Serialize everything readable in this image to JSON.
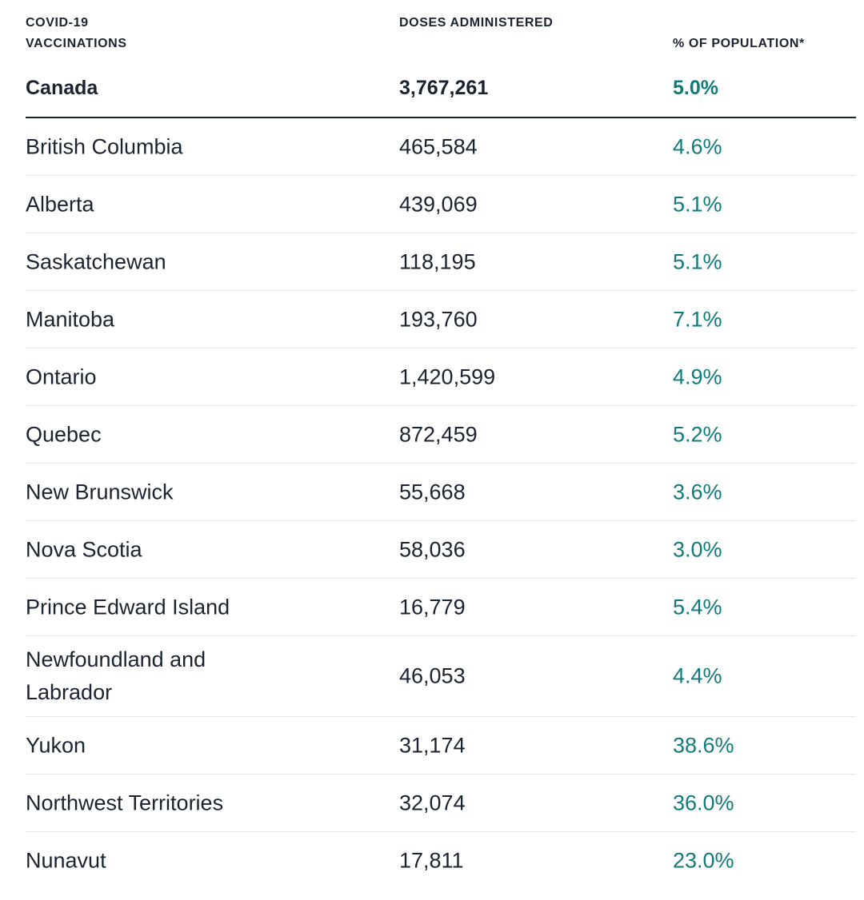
{
  "header": {
    "col1": "COVID-19 VACCINATIONS",
    "col2": "DOSES ADMINISTERED",
    "col3": "% OF POPULATION*"
  },
  "total": {
    "region": "Canada",
    "doses": "3,767,261",
    "percent": "5.0%"
  },
  "rows": [
    {
      "region": "British Columbia",
      "doses": "465,584",
      "percent": "4.6%"
    },
    {
      "region": "Alberta",
      "doses": "439,069",
      "percent": "5.1%"
    },
    {
      "region": "Saskatchewan",
      "doses": "118,195",
      "percent": "5.1%"
    },
    {
      "region": "Manitoba",
      "doses": "193,760",
      "percent": "7.1%"
    },
    {
      "region": "Ontario",
      "doses": "1,420,599",
      "percent": "4.9%"
    },
    {
      "region": "Quebec",
      "doses": "872,459",
      "percent": "5.2%"
    },
    {
      "region": "New Brunswick",
      "doses": "55,668",
      "percent": "3.6%"
    },
    {
      "region": "Nova Scotia",
      "doses": "58,036",
      "percent": "3.0%"
    },
    {
      "region": "Prince Edward Island",
      "doses": "16,779",
      "percent": "5.4%"
    },
    {
      "region": "Newfoundland and Labrador",
      "doses": "46,053",
      "percent": "4.4%"
    },
    {
      "region": "Yukon",
      "doses": "31,174",
      "percent": "38.6%"
    },
    {
      "region": "Northwest Territories",
      "doses": "32,074",
      "percent": "36.0%"
    },
    {
      "region": "Nunavut",
      "doses": "17,811",
      "percent": "23.0%"
    }
  ],
  "colors": {
    "text": "#1b2230",
    "accent": "#0f7b7b",
    "divider": "#e4e6ea"
  }
}
